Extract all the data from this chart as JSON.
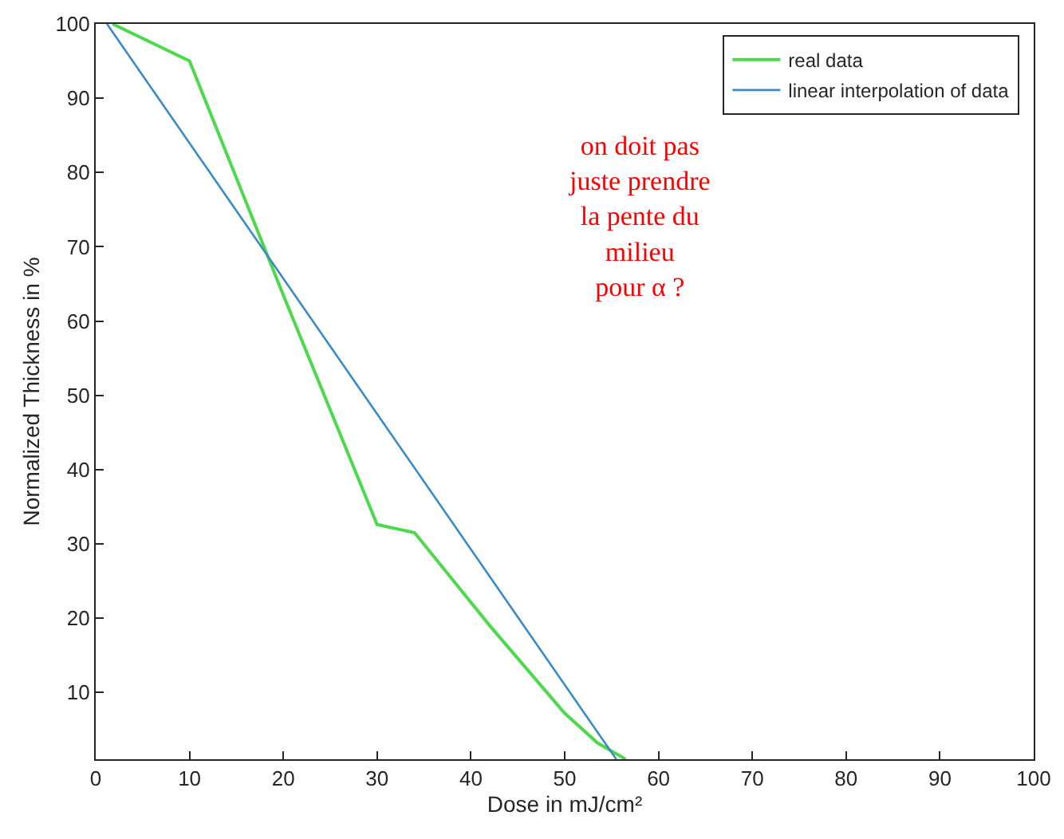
{
  "chart_data": {
    "type": "line",
    "xlabel": "Dose in mJ/cm²",
    "ylabel": "Normalized Thickness in %",
    "xlim": [
      0,
      100
    ],
    "xticks": [
      0,
      10,
      20,
      30,
      40,
      50,
      60,
      70,
      80,
      90,
      100
    ],
    "ylim": [
      1,
      100
    ],
    "yticks": [
      10,
      20,
      30,
      40,
      50,
      60,
      70,
      80,
      90,
      100
    ],
    "legend": "top right",
    "marker": "none",
    "line_style": "solid",
    "series": [
      {
        "name": "real data",
        "color": "#4cd94c",
        "x": [
          1.8,
          10,
          20,
          30,
          34,
          42,
          50,
          53.5,
          56.5
        ],
        "values": [
          100,
          95,
          63.5,
          32.6,
          31.5,
          19,
          7.2,
          3.2,
          1
        ]
      },
      {
        "name": "linear interpolation of data",
        "color": "#3b8ac4",
        "x": [
          1.2,
          55.5
        ],
        "values": [
          100,
          1
        ]
      }
    ],
    "annotations": [
      "on doit pas\njuste prendre\nla pente du\nmilieu\npour α ?"
    ]
  }
}
